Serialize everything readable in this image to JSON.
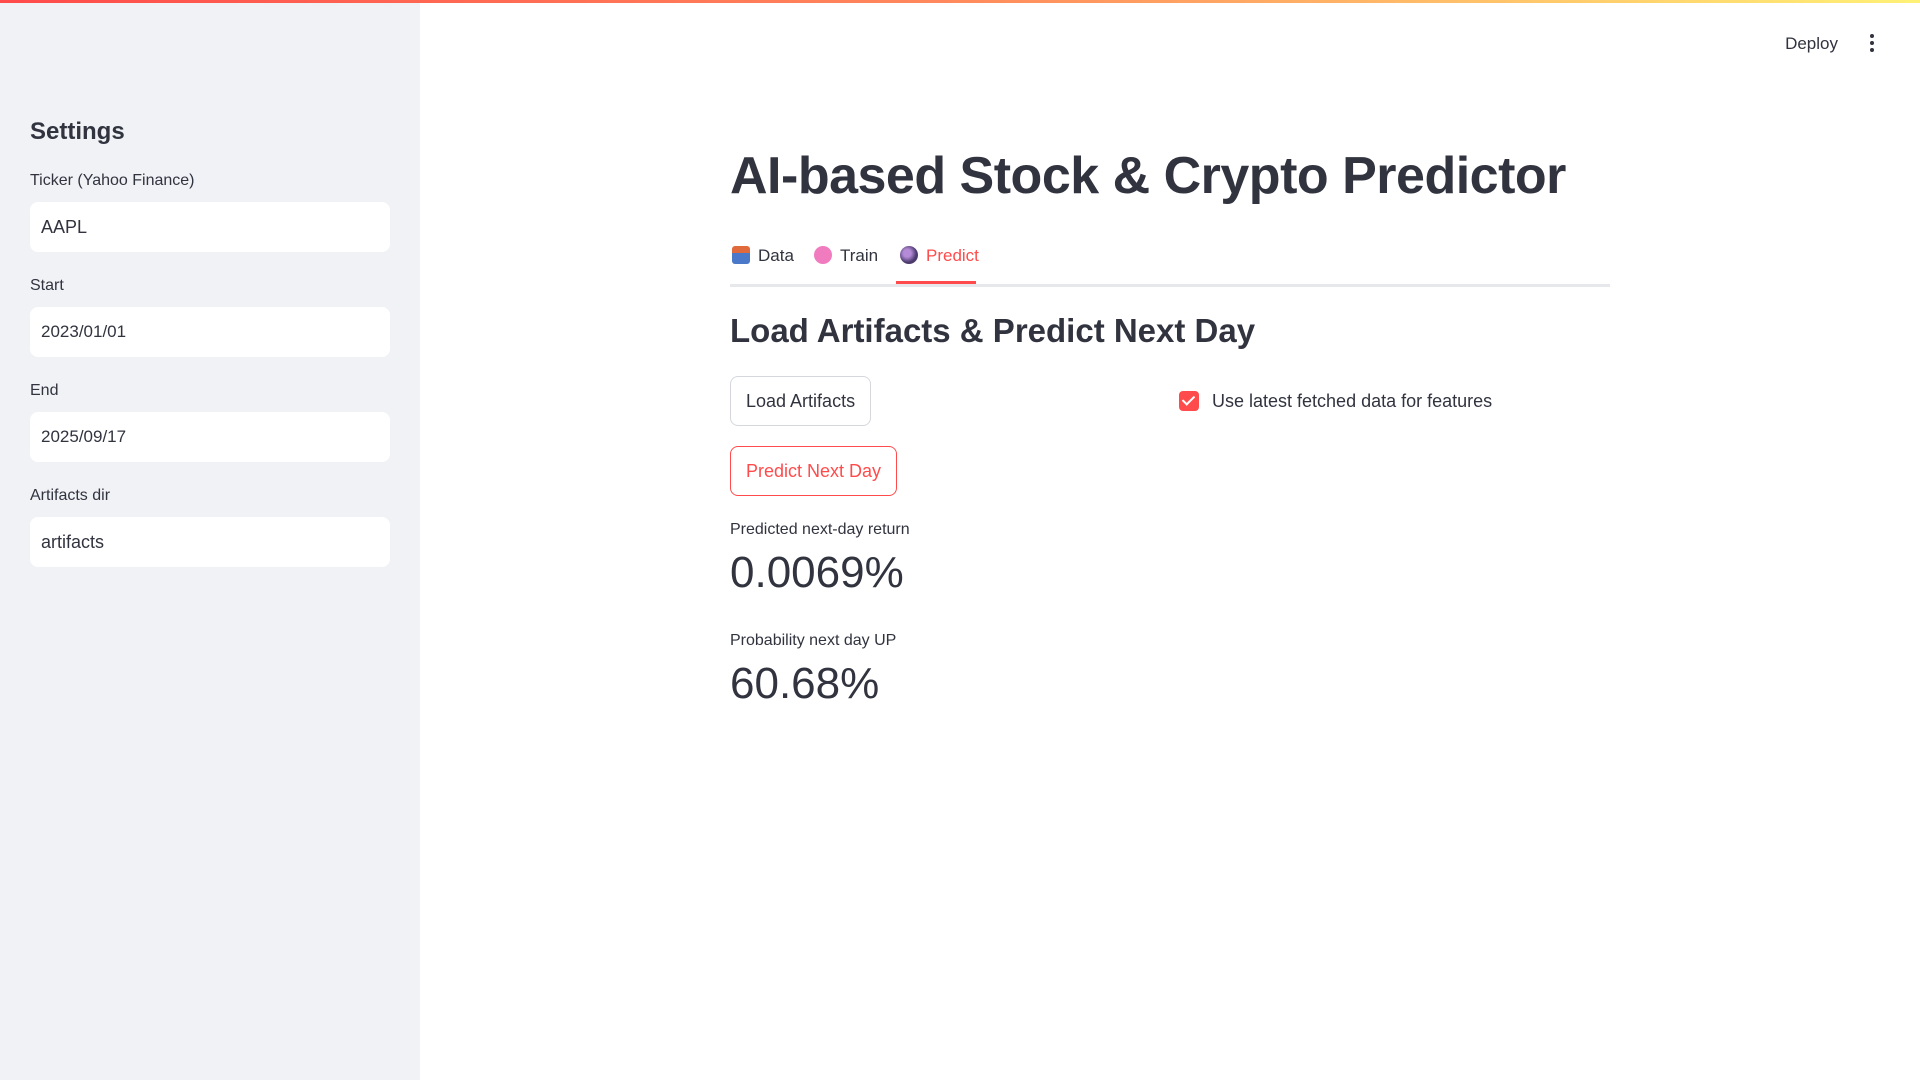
{
  "sidebar": {
    "title": "Settings",
    "fields": [
      {
        "label": "Ticker (Yahoo Finance)",
        "value": "AAPL"
      },
      {
        "label": "Start",
        "value": "2023/01/01"
      },
      {
        "label": "End",
        "value": "2025/09/17"
      },
      {
        "label": "Artifacts dir",
        "value": "artifacts"
      }
    ]
  },
  "header": {
    "deploy_label": "Deploy",
    "menu_icon": "kebab-menu-icon"
  },
  "main": {
    "title": "AI-based Stock & Crypto Predictor",
    "tabs": [
      {
        "label": "Data",
        "icon": "inbox-tray-icon",
        "active": false
      },
      {
        "label": "Train",
        "icon": "brain-icon",
        "active": false
      },
      {
        "label": "Predict",
        "icon": "crystal-ball-icon",
        "active": true
      }
    ],
    "section_title": "Load Artifacts & Predict Next Day",
    "load_button_label": "Load Artifacts",
    "predict_button_label": "Predict Next Day",
    "checkbox": {
      "label": "Use latest fetched data for features",
      "checked": true
    },
    "metrics": [
      {
        "label": "Predicted next-day return",
        "value": "0.0069%"
      },
      {
        "label": "Probability next day UP",
        "value": "60.68%"
      }
    ]
  },
  "colors": {
    "accent": "#ff4b4b",
    "sidebar_bg": "#f0f2f6",
    "text": "#31333f"
  }
}
